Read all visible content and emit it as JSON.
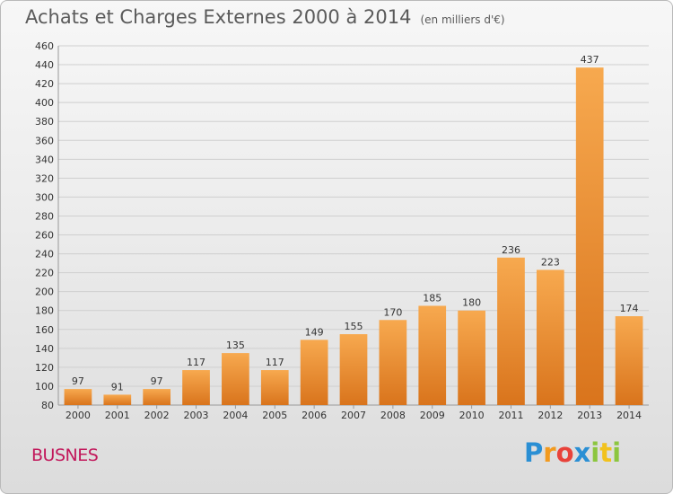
{
  "header": {
    "title": "Achats et Charges Externes 2000 à 2014",
    "unit": "(en milliers d'€)"
  },
  "footer": {
    "town": "BUSNES",
    "logo": {
      "letters": [
        "P",
        "r",
        "o",
        "x",
        "i",
        "t",
        "i"
      ],
      "colors": [
        "#2a8fd4",
        "#f29a1e",
        "#e8423a",
        "#2a8fd4",
        "#8cc63e",
        "#f2c21e",
        "#8cc63e"
      ]
    }
  },
  "colors": {
    "bar_light": "#f7a94f",
    "bar_dark": "#d9741c",
    "grid": "#cfcfcf",
    "title": "#5a5a5a",
    "town": "#c2185b"
  },
  "chart_data": {
    "type": "bar",
    "title": "Achats et Charges Externes 2000 à 2014",
    "subtitle": "(en milliers d'€)",
    "categories": [
      "2000",
      "2001",
      "2002",
      "2003",
      "2004",
      "2005",
      "2006",
      "2007",
      "2008",
      "2009",
      "2010",
      "2011",
      "2012",
      "2013",
      "2014"
    ],
    "values": [
      97,
      91,
      97,
      117,
      135,
      117,
      149,
      155,
      170,
      185,
      180,
      236,
      223,
      437,
      174
    ],
    "ylim": [
      80,
      460
    ],
    "ytick_step": 20,
    "grid": true,
    "xlabel": "",
    "ylabel": ""
  }
}
